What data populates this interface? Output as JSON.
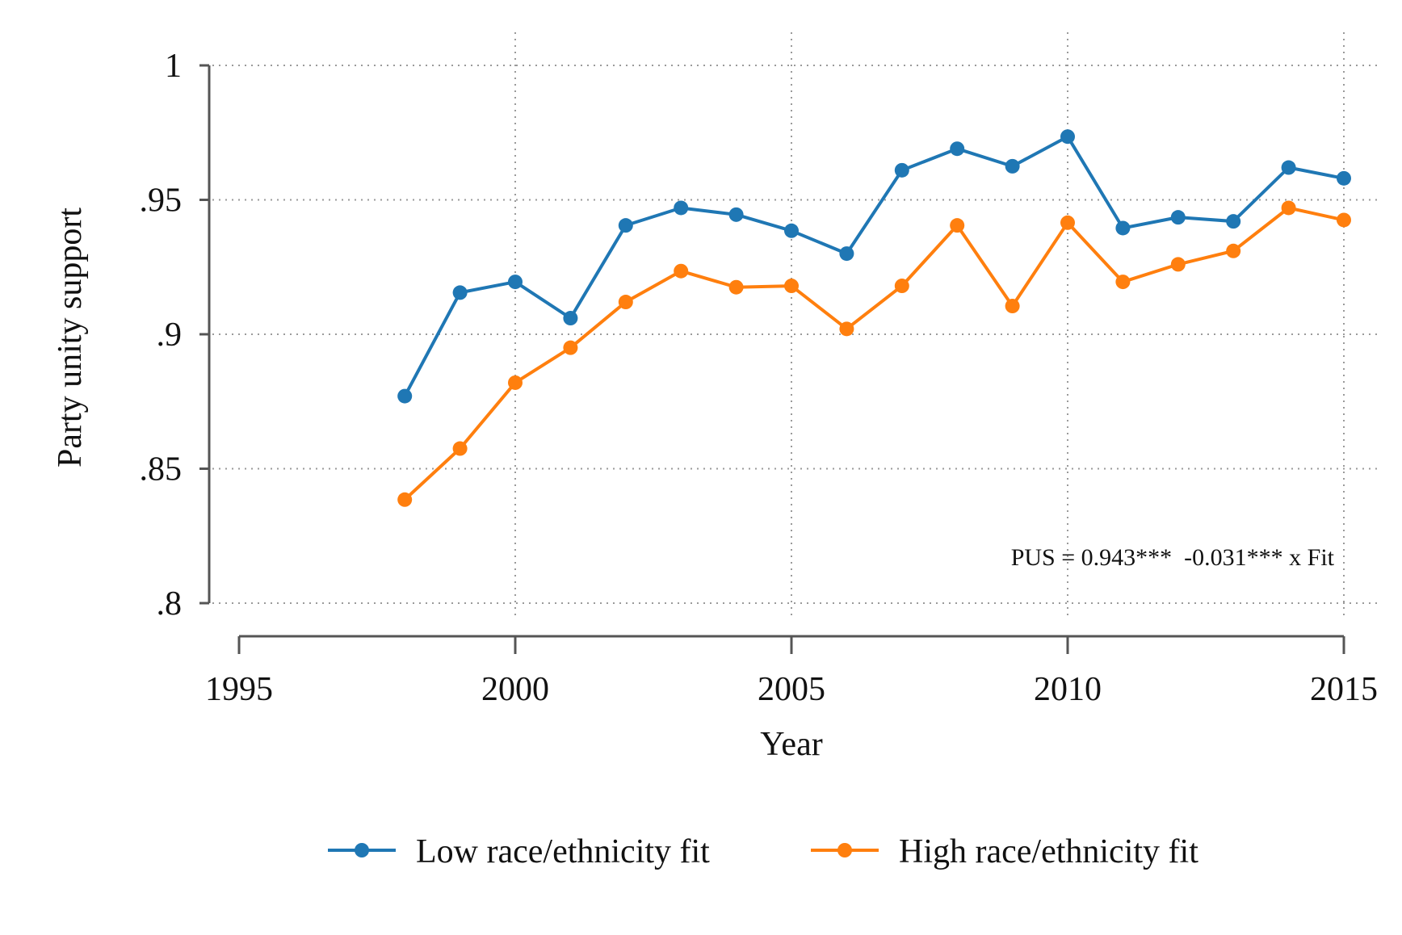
{
  "chart_data": {
    "type": "line",
    "title": "",
    "xlabel": "Year",
    "ylabel": "Party unity support",
    "xlim": [
      1995,
      2015
    ],
    "ylim": [
      0.8,
      1.0
    ],
    "x_ticks": [
      1995,
      2000,
      2005,
      2010,
      2015
    ],
    "x_tick_labels": [
      "1995",
      "2000",
      "2005",
      "2010",
      "2015"
    ],
    "y_ticks": [
      0.8,
      0.85,
      0.9,
      0.95,
      1.0
    ],
    "y_tick_labels": [
      ".8",
      ".85",
      ".9",
      ".95",
      "1"
    ],
    "grid": true,
    "legend_position": "bottom",
    "annotation": "PUS = 0.943***  -0.031*** x Fit",
    "x": [
      1998,
      1999,
      2000,
      2001,
      2002,
      2003,
      2004,
      2005,
      2006,
      2007,
      2008,
      2009,
      2010,
      2011,
      2012,
      2013,
      2014,
      2015
    ],
    "series": [
      {
        "name": "Low race/ethnicity fit",
        "color": "#1f77b4",
        "values": [
          0.877,
          0.9155,
          0.9195,
          0.906,
          0.9405,
          0.947,
          0.9445,
          0.9385,
          0.93,
          0.961,
          0.969,
          0.9625,
          0.9735,
          0.9395,
          0.9435,
          0.942,
          0.962,
          0.958
        ]
      },
      {
        "name": "High race/ethnicity fit",
        "color": "#ff7f0e",
        "values": [
          0.8385,
          0.8575,
          0.882,
          0.895,
          0.912,
          0.9235,
          0.9175,
          0.918,
          0.902,
          0.918,
          0.9405,
          0.9105,
          0.9415,
          0.9195,
          0.926,
          0.931,
          0.947,
          0.9425
        ]
      }
    ]
  }
}
